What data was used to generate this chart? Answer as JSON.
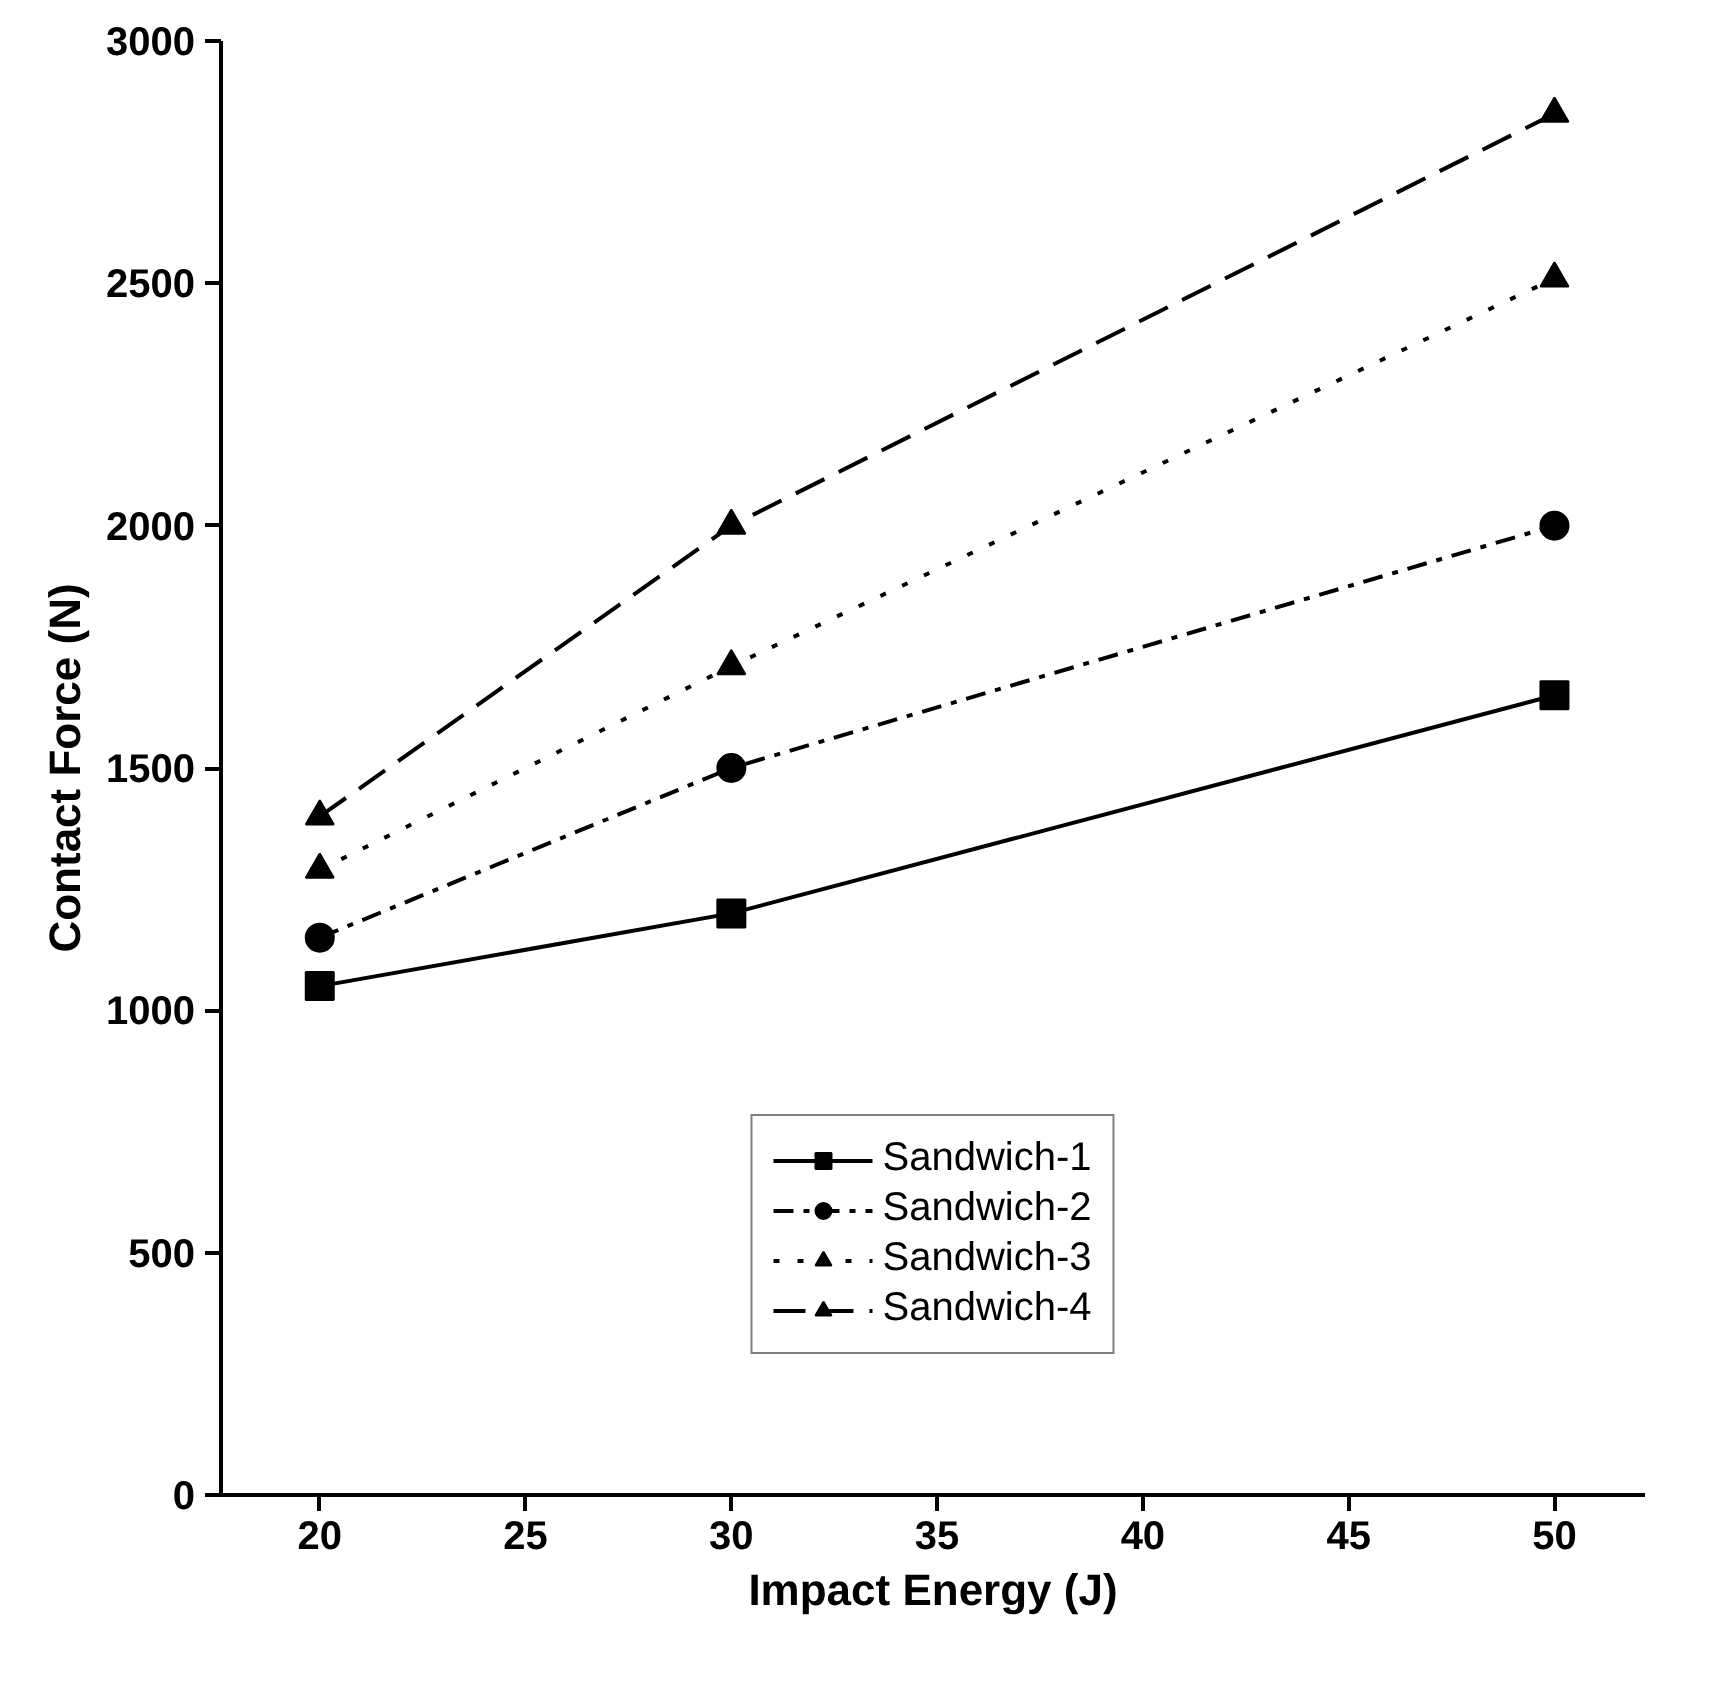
{
  "chart_data": {
    "type": "line",
    "xlabel": "Impact Energy (J)",
    "ylabel": "Contact Force (N)",
    "x": [
      20,
      30,
      50
    ],
    "series": [
      {
        "name": "Sandwich-1",
        "color": "#000000",
        "values": [
          1050,
          1200,
          1650
        ],
        "marker": "square",
        "line_style": "solid"
      },
      {
        "name": "Sandwich-2",
        "color": "#000000",
        "values": [
          1150,
          1500,
          2000
        ],
        "marker": "circle",
        "line_style": "dashdot"
      },
      {
        "name": "Sandwich-3",
        "color": "#000000",
        "values": [
          1290,
          1710,
          2510
        ],
        "marker": "triangle",
        "line_style": "dotted"
      },
      {
        "name": "Sandwich-4",
        "color": "#000000",
        "values": [
          1400,
          2000,
          2850
        ],
        "marker": "triangle",
        "line_style": "dashed"
      }
    ],
    "xlim": [
      17.6,
      52.2
    ],
    "ylim": [
      0,
      3000
    ],
    "xticks": [
      20,
      25,
      30,
      35,
      40,
      45,
      50
    ],
    "yticks": [
      0,
      500,
      1000,
      1500,
      2000,
      2500,
      3000
    ],
    "grid": false,
    "legend": "bottom"
  }
}
